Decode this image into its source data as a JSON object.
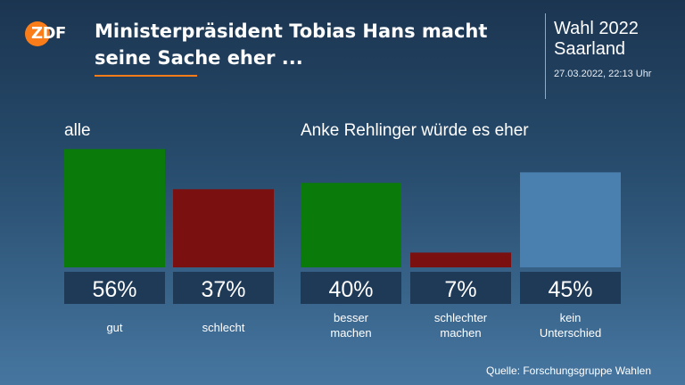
{
  "header": {
    "logo_text": "ZDF",
    "headline": "Ministerpräsident Tobias Hans macht seine Sache eher ...",
    "election": "Wahl 2022 Saarland",
    "timestamp": "27.03.2022, 22:13 Uhr"
  },
  "footer": {
    "source": "Quelle: Forschungsgruppe Wahlen"
  },
  "colors": {
    "accent": "#fa7d19",
    "positive": "#0a7a0a",
    "negative": "#7a1010",
    "neutral": "#4a80b0",
    "value_box": "#1f3a57"
  },
  "chart_data": [
    {
      "type": "bar",
      "title": "alle",
      "categories": [
        "gut",
        "schlecht"
      ],
      "values": [
        56,
        37
      ],
      "value_labels": [
        "56%",
        "37%"
      ],
      "unit": "%",
      "bar_colors": [
        "#0a7a0a",
        "#7a1010"
      ]
    },
    {
      "type": "bar",
      "title": "Anke Rehlinger würde es eher",
      "categories": [
        "besser machen",
        "schlechter machen",
        "kein Unterschied"
      ],
      "values": [
        40,
        7,
        45
      ],
      "value_labels": [
        "40%",
        "7%",
        "45%"
      ],
      "unit": "%",
      "bar_colors": [
        "#0a7a0a",
        "#7a1010",
        "#4a80b0"
      ]
    }
  ]
}
